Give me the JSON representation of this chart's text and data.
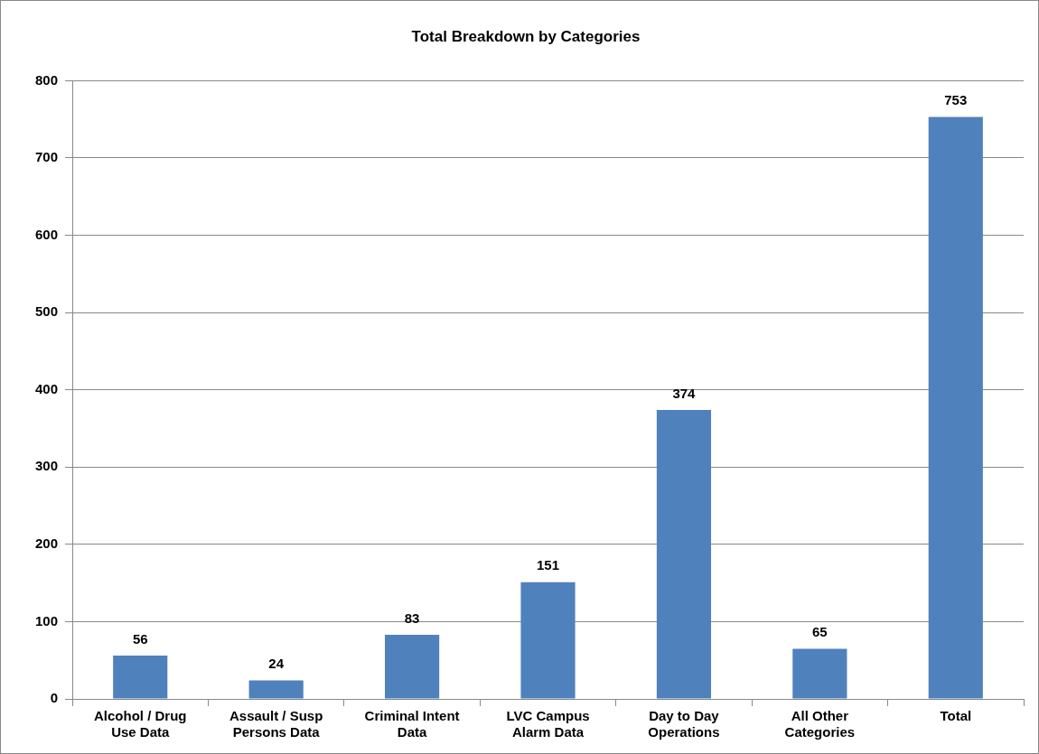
{
  "chart_data": {
    "type": "bar",
    "title": "Total Breakdown by Categories",
    "categories": [
      "Alcohol / Drug Use Data",
      "Assault / Susp Persons Data",
      "Criminal Intent Data",
      "LVC Campus Alarm Data",
      "Day to Day Operations",
      "All Other Categories",
      "Total"
    ],
    "values": [
      56,
      24,
      83,
      151,
      374,
      65,
      753
    ],
    "color": "#4f81bd",
    "ylim": [
      0,
      800
    ],
    "yticks": [
      0,
      100,
      200,
      300,
      400,
      500,
      600,
      700,
      800
    ],
    "grid": "y",
    "legend": false,
    "data_labels": true
  }
}
